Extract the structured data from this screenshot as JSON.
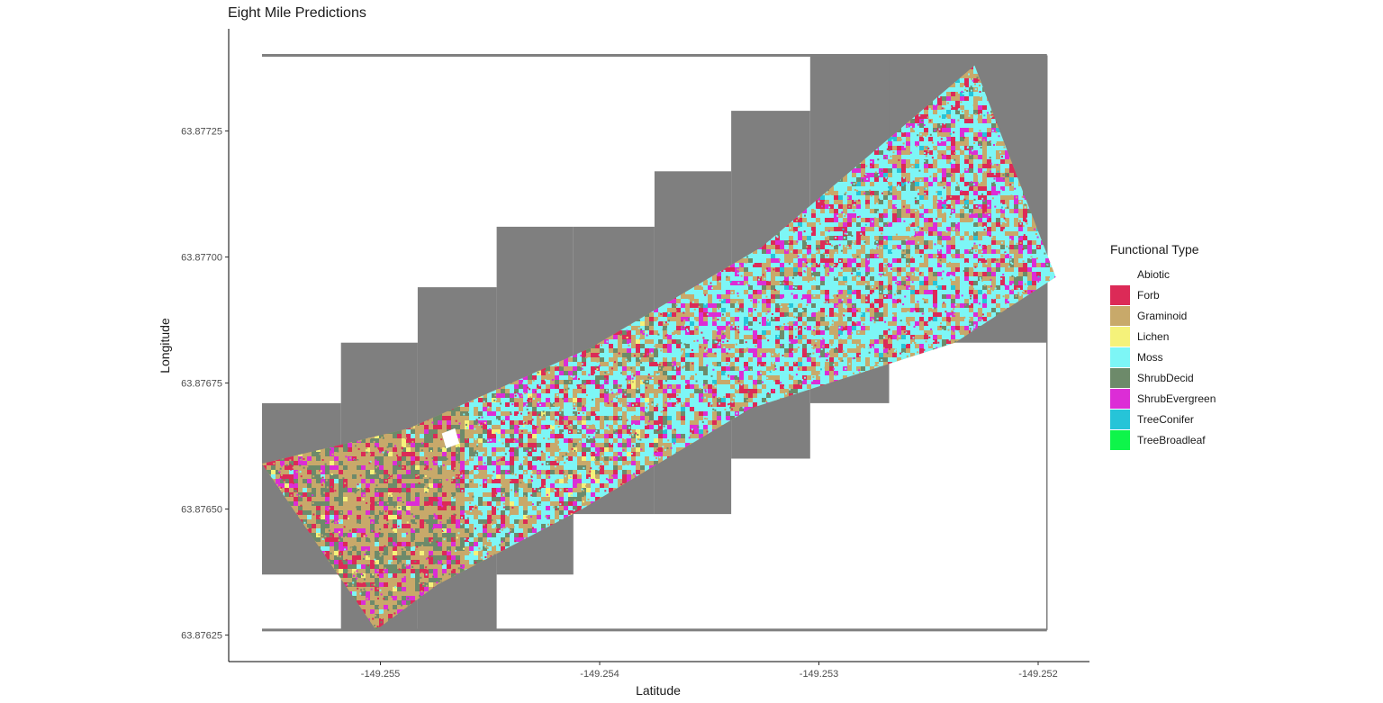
{
  "chart_data": {
    "type": "heatmap",
    "title": "Eight Mile Predictions",
    "xlabel": "Latitude",
    "ylabel": "Longitude",
    "xlim": [
      -149.2555,
      -149.2518
    ],
    "ylim": [
      63.87624,
      63.87742
    ],
    "x_ticks": [
      {
        "value": -149.255,
        "label": "-149.255"
      },
      {
        "value": -149.254,
        "label": "-149.254"
      },
      {
        "value": -149.253,
        "label": "-149.253"
      },
      {
        "value": -149.252,
        "label": "-149.252"
      }
    ],
    "y_ticks": [
      {
        "value": 63.87625,
        "label": "63.87625"
      },
      {
        "value": 63.8765,
        "label": "63.87650"
      },
      {
        "value": 63.87675,
        "label": "63.87675"
      },
      {
        "value": 63.877,
        "label": "63.87700"
      },
      {
        "value": 63.87725,
        "label": "63.87725"
      }
    ],
    "grid": false,
    "legend_position": "right",
    "legend": {
      "title": "Functional Type",
      "entries": [
        {
          "name": "Abiotic",
          "color": "#ffffff"
        },
        {
          "name": "Forb",
          "color": "#dc2a57"
        },
        {
          "name": "Graminoid",
          "color": "#c8a96a"
        },
        {
          "name": "Lichen",
          "color": "#f5f27a"
        },
        {
          "name": "Moss",
          "color": "#7df6f6"
        },
        {
          "name": "ShrubDecid",
          "color": "#6d8a6a"
        },
        {
          "name": "ShrubEvergreen",
          "color": "#dc2dd6"
        },
        {
          "name": "TreeConifer",
          "color": "#26c4d8"
        },
        {
          "name": "TreeBroadleaf",
          "color": "#0ef54a"
        }
      ]
    },
    "background_fill": "#7f7f7f",
    "classified_strip": {
      "polygon": [
        [
          -149.25554,
          63.87659
        ],
        [
          -149.25487,
          63.87666
        ],
        [
          -149.25404,
          63.87682
        ],
        [
          -149.25326,
          63.87702
        ],
        [
          -149.25229,
          63.87738
        ],
        [
          -149.25192,
          63.87696
        ],
        [
          -149.25238,
          63.87683
        ],
        [
          -149.25331,
          63.8767
        ],
        [
          -149.25408,
          63.8765
        ],
        [
          -149.25474,
          63.87635
        ],
        [
          -149.25502,
          63.87626
        ]
      ],
      "opening": [
        [
          -149.25472,
          63.87665
        ],
        [
          -149.25466,
          63.87666
        ],
        [
          -149.25464,
          63.87663
        ],
        [
          -149.2547,
          63.87662
        ]
      ]
    },
    "raster_tiles": [
      {
        "x": [
          -149.25554,
          -149.25518
        ],
        "y": [
          63.87637,
          63.87671
        ]
      },
      {
        "x": [
          -149.25518,
          -149.25483
        ],
        "y": [
          63.87626,
          63.87683
        ]
      },
      {
        "x": [
          -149.25483,
          -149.25447
        ],
        "y": [
          63.87626,
          63.87694
        ]
      },
      {
        "x": [
          -149.25447,
          -149.25412
        ],
        "y": [
          63.87637,
          63.87706
        ]
      },
      {
        "x": [
          -149.25412,
          -149.25375
        ],
        "y": [
          63.87649,
          63.87706
        ]
      },
      {
        "x": [
          -149.25375,
          -149.2534
        ],
        "y": [
          63.87649,
          63.87717
        ]
      },
      {
        "x": [
          -149.2534,
          -149.25304
        ],
        "y": [
          63.8766,
          63.87729
        ]
      },
      {
        "x": [
          -149.25304,
          -149.25268
        ],
        "y": [
          63.87671,
          63.8774
        ]
      },
      {
        "x": [
          -149.25268,
          -149.25196
        ],
        "y": [
          63.87683,
          63.8774
        ]
      }
    ],
    "boundary_lines": {
      "x": [
        -149.25554,
        -149.25196
      ],
      "y": [
        63.87626,
        63.8774
      ]
    }
  }
}
